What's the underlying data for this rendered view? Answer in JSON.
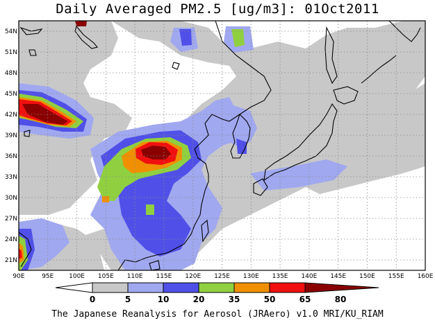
{
  "title": "Daily Averaged PM2.5 [ug/m3]: 01Oct2011",
  "footer": "The Japanese Reanalysis for Aerosol (JRAero) v1.0 MRI/KU_RIAM",
  "map": {
    "lon_range": [
      90,
      160
    ],
    "lat_range": [
      19.5,
      55.5
    ],
    "lon_ticks": [
      "90E",
      "95E",
      "100E",
      "105E",
      "110E",
      "115E",
      "120E",
      "125E",
      "130E",
      "135E",
      "140E",
      "145E",
      "150E",
      "155E",
      "160E"
    ],
    "lat_ticks": [
      "54N",
      "51N",
      "48N",
      "45N",
      "42N",
      "39N",
      "36N",
      "33N",
      "30N",
      "27N",
      "24N",
      "21N"
    ],
    "lat_tick_values": [
      54,
      51,
      48,
      45,
      42,
      39,
      36,
      33,
      30,
      27,
      24,
      21
    ],
    "grid": "dotted"
  },
  "colorbar": {
    "levels": [
      "0",
      "5",
      "10",
      "20",
      "35",
      "50",
      "65",
      "80"
    ],
    "colors": [
      "#ffffff",
      "#c8c8c8",
      "#a0a8f0",
      "#5050e8",
      "#90d040",
      "#f09000",
      "#f01010",
      "#8a0000"
    ]
  }
}
